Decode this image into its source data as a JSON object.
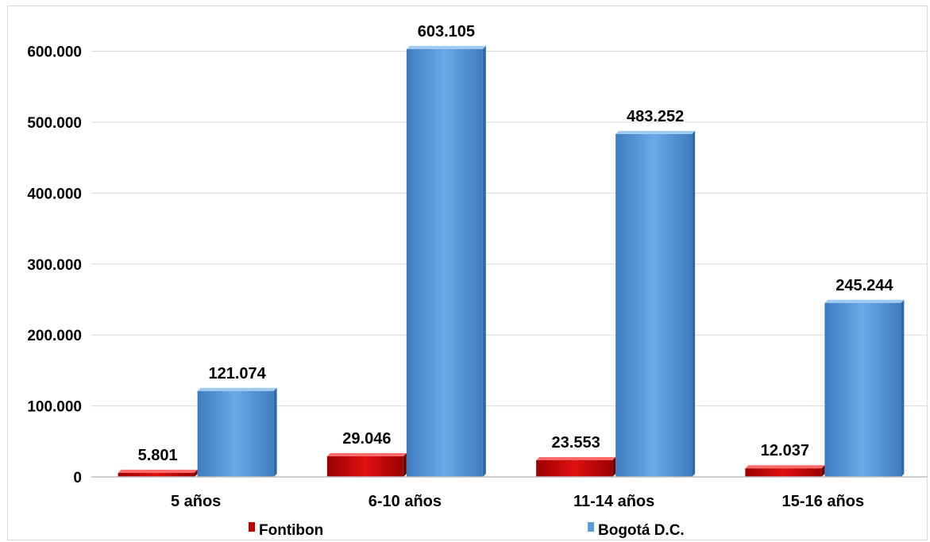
{
  "chart_data": {
    "type": "bar",
    "categories": [
      "5 años",
      "6-10 años",
      "11-14 años",
      "15-16 años"
    ],
    "series": [
      {
        "name": "Fontibon",
        "values": [
          5801,
          29046,
          23553,
          12037
        ],
        "labels": [
          "5.801",
          "29.046",
          "23.553",
          "12.037"
        ],
        "color": "#c00000"
      },
      {
        "name": "Bogotá D.C.",
        "values": [
          121074,
          603105,
          483252,
          245244
        ],
        "labels": [
          "121.074",
          "603.105",
          "483.252",
          "245.244"
        ],
        "color": "#5b9bd5"
      }
    ],
    "yticks": [
      0,
      100000,
      200000,
      300000,
      400000,
      500000,
      600000
    ],
    "ytick_labels": [
      "0",
      "100.000",
      "200.000",
      "300.000",
      "400.000",
      "500.000",
      "600.000"
    ],
    "ylim": [
      0,
      650000
    ],
    "grid": true,
    "legend_position": "bottom",
    "title": "",
    "xlabel": "",
    "ylabel": ""
  }
}
